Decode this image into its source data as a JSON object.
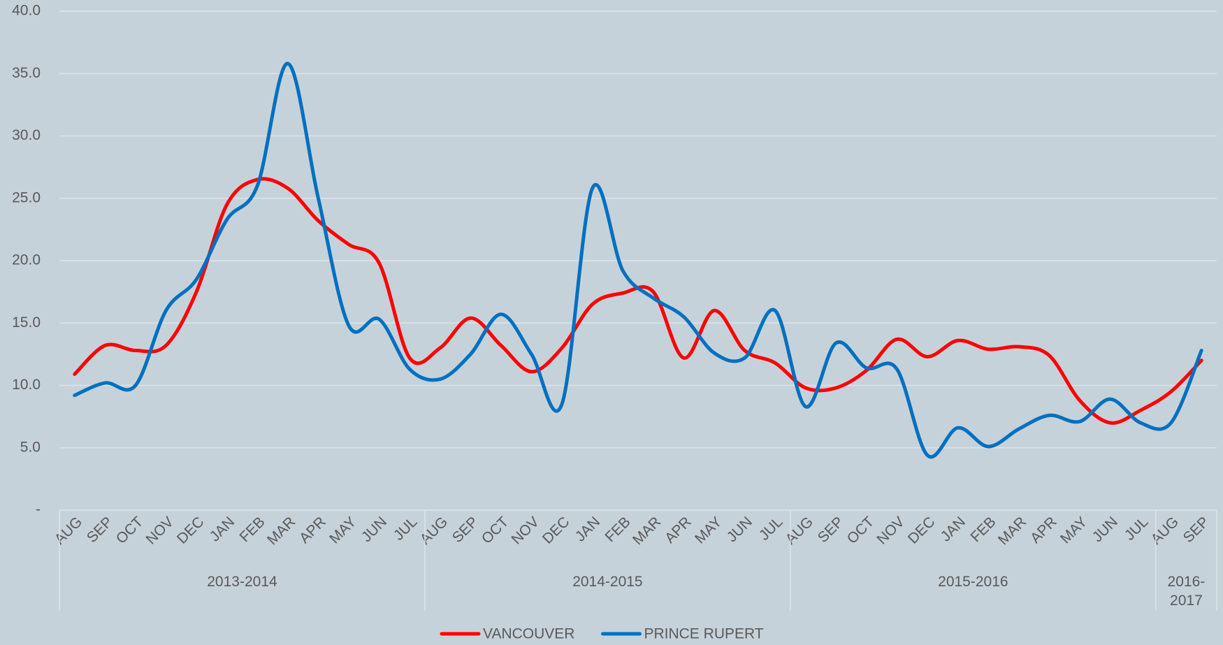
{
  "chart_data": {
    "type": "line",
    "categories": [
      "AUG",
      "SEP",
      "OCT",
      "NOV",
      "DEC",
      "JAN",
      "FEB",
      "MAR",
      "APR",
      "MAY",
      "JUN",
      "JUL",
      "AUG",
      "SEP",
      "OCT",
      "NOV",
      "DEC",
      "JAN",
      "FEB",
      "MAR",
      "APR",
      "MAY",
      "JUN",
      "JUL",
      "AUG",
      "SEP",
      "OCT",
      "NOV",
      "DEC",
      "JAN",
      "FEB",
      "MAR",
      "APR",
      "MAY",
      "JUN",
      "JUL",
      "AUG",
      "SEP"
    ],
    "groups": [
      "2013-2014",
      "2013-2014",
      "2013-2014",
      "2013-2014",
      "2013-2014",
      "2013-2014",
      "2013-2014",
      "2013-2014",
      "2013-2014",
      "2013-2014",
      "2013-2014",
      "2013-2014",
      "2014-2015",
      "2014-2015",
      "2014-2015",
      "2014-2015",
      "2014-2015",
      "2014-2015",
      "2014-2015",
      "2014-2015",
      "2014-2015",
      "2014-2015",
      "2014-2015",
      "2014-2015",
      "2015-2016",
      "2015-2016",
      "2015-2016",
      "2015-2016",
      "2015-2016",
      "2015-2016",
      "2015-2016",
      "2015-2016",
      "2015-2016",
      "2015-2016",
      "2015-2016",
      "2015-2016",
      "2016-2017",
      "2016-2017"
    ],
    "series": [
      {
        "name": "VANCOUVER",
        "color": "#ff0000",
        "values": [
          10.9,
          13.2,
          12.8,
          13.2,
          17.5,
          24.5,
          26.5,
          25.8,
          23.2,
          21.3,
          19.8,
          12.2,
          13.0,
          15.4,
          13.2,
          11.1,
          13.0,
          16.5,
          17.4,
          17.5,
          12.2,
          16.0,
          12.8,
          11.8,
          9.8,
          9.8,
          11.2,
          13.7,
          12.3,
          13.6,
          12.9,
          13.1,
          12.4,
          8.8,
          7.0,
          8.0,
          9.5,
          12.0
        ]
      },
      {
        "name": "PRINCE RUPERT",
        "color": "#0070c0",
        "values": [
          9.2,
          10.2,
          10.0,
          16.0,
          18.5,
          23.3,
          26.0,
          35.8,
          25.0,
          14.8,
          15.3,
          11.3,
          10.5,
          12.5,
          15.7,
          12.5,
          8.5,
          25.8,
          19.2,
          17.0,
          15.5,
          12.6,
          12.2,
          16.0,
          8.3,
          13.4,
          11.4,
          11.3,
          4.4,
          6.6,
          5.1,
          6.5,
          7.6,
          7.1,
          8.9,
          7.0,
          7.0,
          12.8
        ]
      }
    ],
    "ylim": [
      0,
      40
    ],
    "yticks": [
      {
        "value": 0,
        "label": "-"
      },
      {
        "value": 5,
        "label": "5.0"
      },
      {
        "value": 10,
        "label": "10.0"
      },
      {
        "value": 15,
        "label": "15.0"
      },
      {
        "value": 20,
        "label": "20.0"
      },
      {
        "value": 25,
        "label": "25.0"
      },
      {
        "value": 30,
        "label": "30.0"
      },
      {
        "value": 35,
        "label": "35.0"
      },
      {
        "value": 40,
        "label": "40.0"
      }
    ],
    "grid": true,
    "legend": "bottom"
  }
}
